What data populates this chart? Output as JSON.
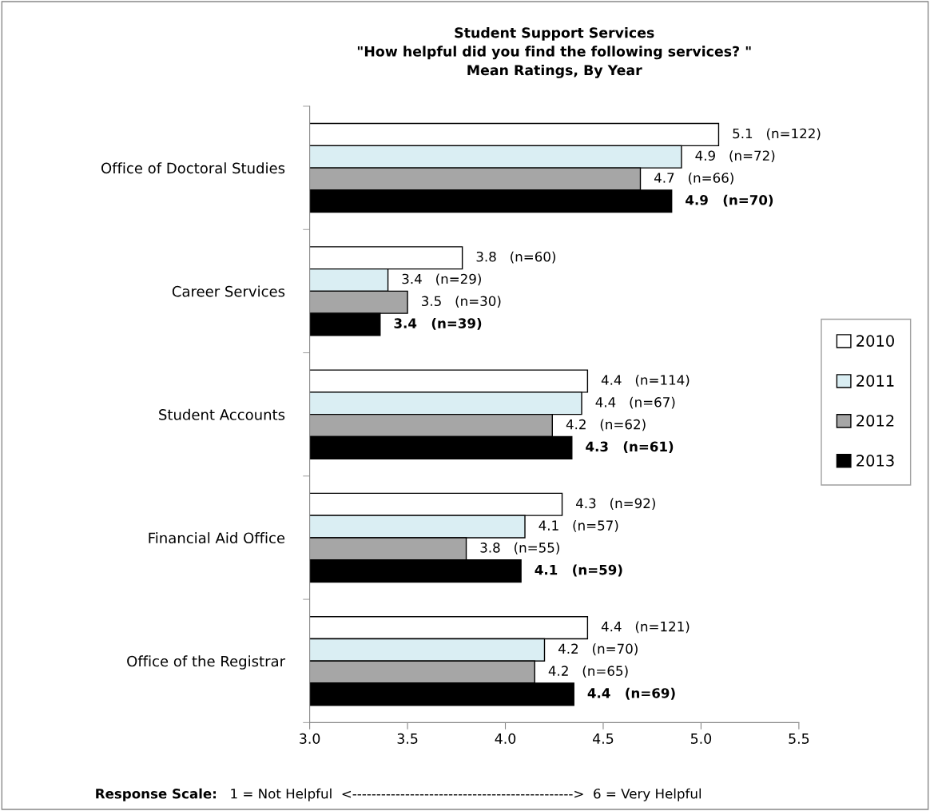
{
  "chart_data": {
    "type": "bar",
    "orientation": "horizontal",
    "title": "Student Support Services\n\"How helpful did you find the following services? \"\nMean Ratings, By Year",
    "categories": [
      "Office of Doctoral Studies",
      "Career Services",
      "Student Accounts",
      "Financial Aid Office",
      "Office of the Registrar"
    ],
    "series": [
      {
        "name": "2010",
        "color": "#ffffff",
        "values": [
          5.09,
          3.78,
          4.42,
          4.29,
          4.42
        ],
        "value_labels": [
          "5.1   (n=122)",
          "3.8   (n=60)",
          "4.4   (n=114)",
          "4.3   (n=92)",
          "4.4   (n=121)"
        ]
      },
      {
        "name": "2011",
        "color": "#daeef3",
        "values": [
          4.9,
          3.4,
          4.39,
          4.1,
          4.2
        ],
        "value_labels": [
          "4.9   (n=72)",
          "3.4   (n=29)",
          "4.4   (n=67)",
          "4.1   (n=57)",
          "4.2   (n=70)"
        ]
      },
      {
        "name": "2012",
        "color": "#a6a6a6",
        "values": [
          4.69,
          3.5,
          4.24,
          3.8,
          4.15
        ],
        "value_labels": [
          "4.7   (n=66)",
          "3.5   (n=30)",
          "4.2   (n=62)",
          "3.8   (n=55)",
          "4.2   (n=65)"
        ]
      },
      {
        "name": "2013",
        "color": "#000000",
        "values": [
          4.85,
          3.36,
          4.34,
          4.08,
          4.35
        ],
        "value_labels": [
          "4.9   (n=70)",
          "3.4   (n=39)",
          "4.3   (n=61)",
          "4.1   (n=59)",
          "4.4   (n=69)"
        ]
      }
    ],
    "xlim": [
      3.0,
      5.5
    ],
    "xticks": [
      {
        "value": 3.0,
        "label": "3.0"
      },
      {
        "value": 3.5,
        "label": "3.5"
      },
      {
        "value": 4.0,
        "label": "4.0"
      },
      {
        "value": 4.5,
        "label": "4.5"
      },
      {
        "value": 5.0,
        "label": "5.0"
      },
      {
        "value": 5.5,
        "label": "5.5"
      }
    ],
    "grid": false,
    "legend": "right",
    "annotations": [
      "Response Scale:",
      "1 = Not Helpful  <---------------------------------------------->  6 = Very Helpful"
    ]
  }
}
